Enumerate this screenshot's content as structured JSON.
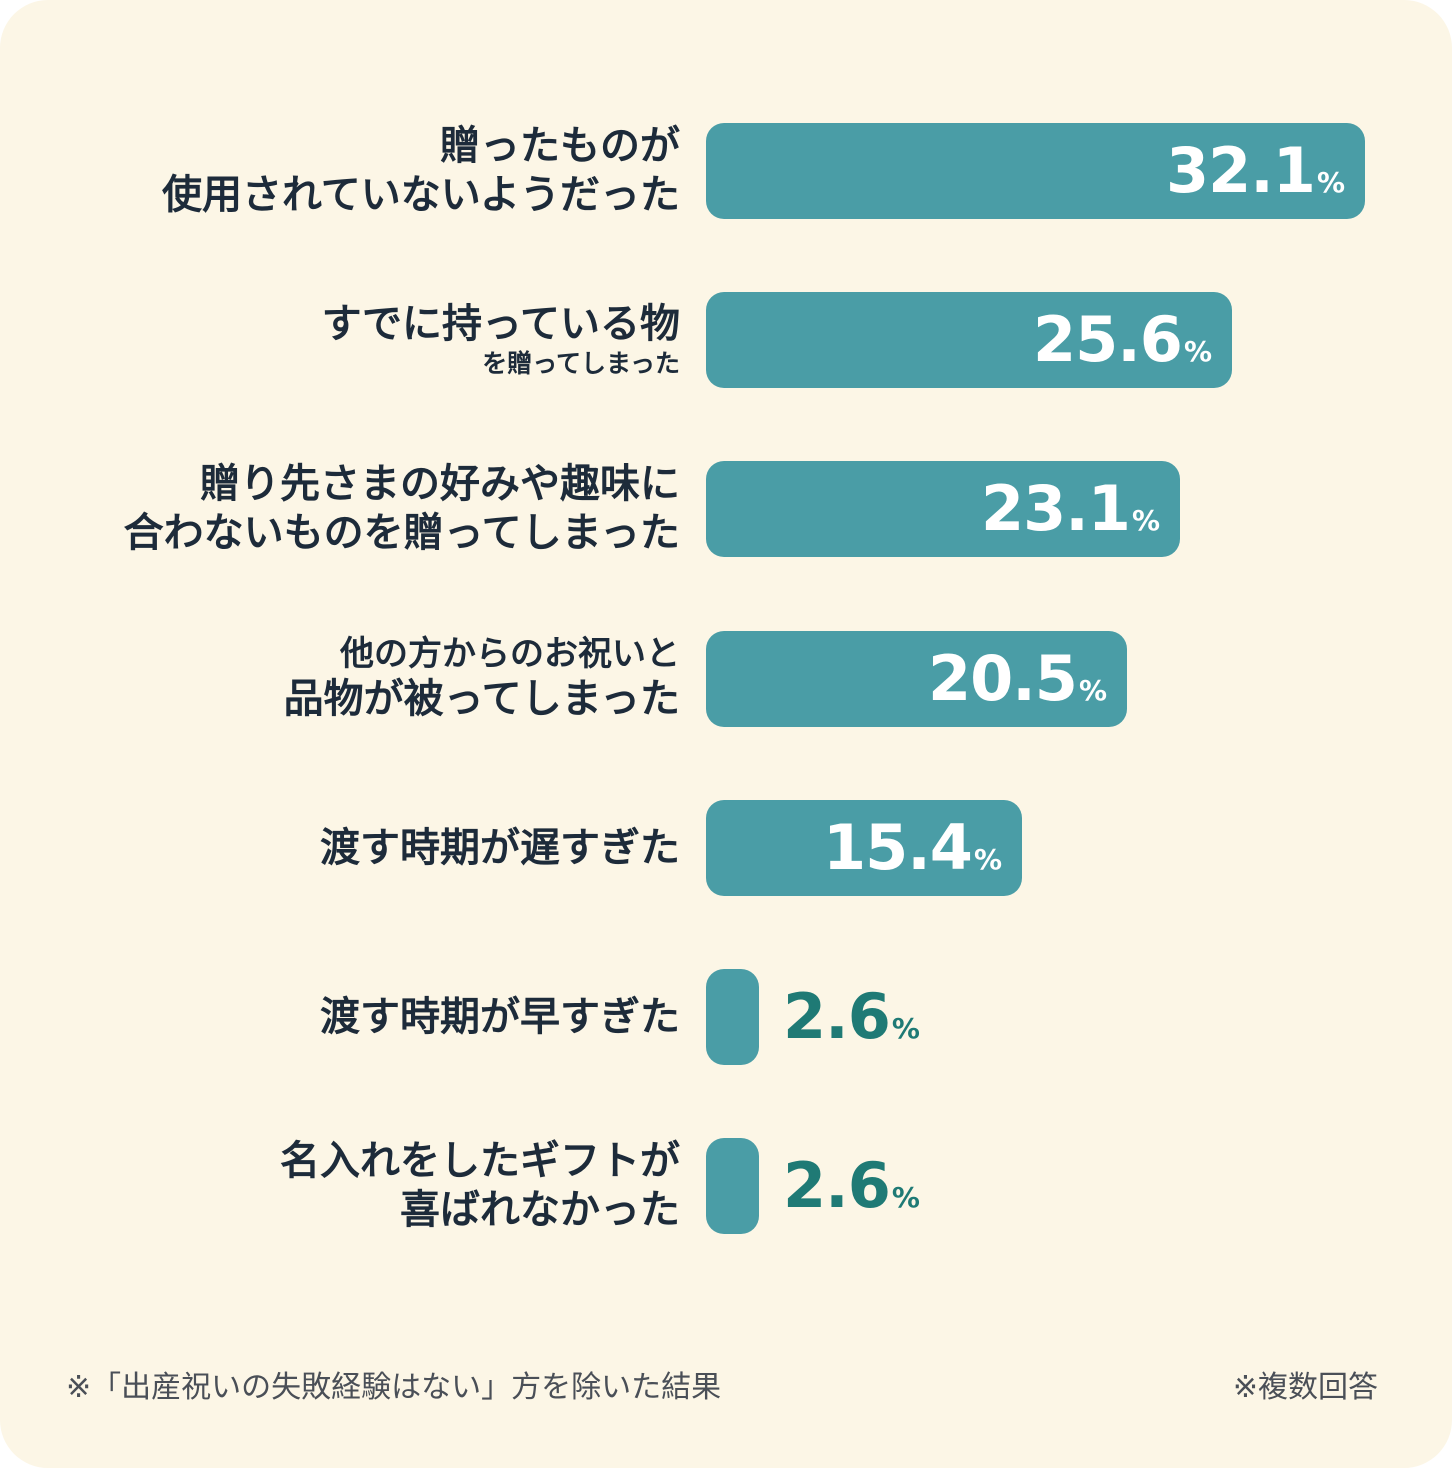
{
  "chart_data": {
    "type": "bar",
    "orientation": "horizontal",
    "unit": "%",
    "categories": [
      {
        "lines": [
          {
            "text": "贈ったものが",
            "size": "lg"
          },
          {
            "text": "使用されていないようだった",
            "size": "lg"
          }
        ]
      },
      {
        "lines": [
          {
            "text": "すでに持っている物",
            "size": "lg"
          },
          {
            "text": "を贈ってしまった",
            "size": "sm"
          }
        ]
      },
      {
        "lines": [
          {
            "text": "贈り先さまの好みや趣味に",
            "size": "lg"
          },
          {
            "text": "合わないものを贈ってしまった",
            "size": "lg"
          }
        ]
      },
      {
        "lines": [
          {
            "text": "他の方からのお祝いと",
            "size": "md"
          },
          {
            "text": "品物が被ってしまった",
            "size": "lg"
          }
        ]
      },
      {
        "lines": [
          {
            "text": "渡す時期が遅すぎた",
            "size": "lg"
          }
        ]
      },
      {
        "lines": [
          {
            "text": "渡す時期が早すぎた",
            "size": "lg"
          }
        ]
      },
      {
        "lines": [
          {
            "text": "名入れをしたギフトが",
            "size": "lg"
          },
          {
            "text": "喜ばれなかった",
            "size": "lg"
          }
        ]
      }
    ],
    "values": [
      32.1,
      25.6,
      23.1,
      20.5,
      15.4,
      2.6,
      2.6
    ],
    "value_labels": [
      "32.1",
      "25.6",
      "23.1",
      "20.5",
      "15.4",
      "2.6",
      "2.6"
    ],
    "percent_sign": "%",
    "xlim": [
      0,
      32.1
    ],
    "grid": false,
    "legend": "none",
    "colors": {
      "bar": "#4a9da6",
      "label_text": "#1d2b3a",
      "value_inside": "#ffffff",
      "value_outside": "#1f7a75",
      "background": "#fcf6e6"
    }
  },
  "footnotes": {
    "left": "※「出産祝いの失敗経験はない」方を除いた結果",
    "right": "※複数回答"
  }
}
